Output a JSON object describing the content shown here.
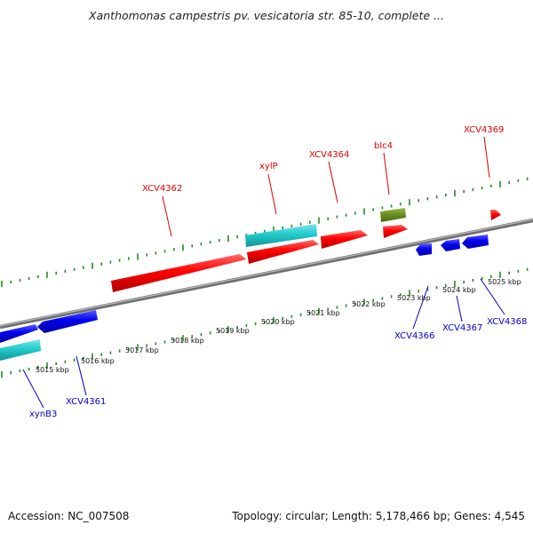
{
  "title": "Xanthomonas campestris pv. vesicatoria str. 85-10, complete ...",
  "footer": {
    "accession": "Accession: NC_007508",
    "summary": "Topology: circular; Length: 5,178,466 bp; Genes: 4,545"
  },
  "colors": {
    "forward_gene": "#ff0000",
    "reverse_gene": "#0000ee",
    "cds_cyan": "#22cccc",
    "cds_olive": "#6b8e23",
    "tick": "#228b22",
    "backbone": "#888888",
    "forward_label": "#dd0000",
    "reverse_label": "#0000cc"
  },
  "scale_labels": [
    "5015 kbp",
    "5016 kbp",
    "5017 kbp",
    "5018 kbp",
    "5019 kbp",
    "5020 kbp",
    "5021 kbp",
    "5022 kbp",
    "5023 kbp",
    "5024 kbp",
    "5025 kbp"
  ],
  "gene_labels_forward": [
    "XCV4362",
    "xylP",
    "XCV4364",
    "blc4",
    "XCV4369"
  ],
  "gene_labels_reverse": [
    "xynB3",
    "XCV4361",
    "XCV4366",
    "XCV4367",
    "XCV4368"
  ]
}
